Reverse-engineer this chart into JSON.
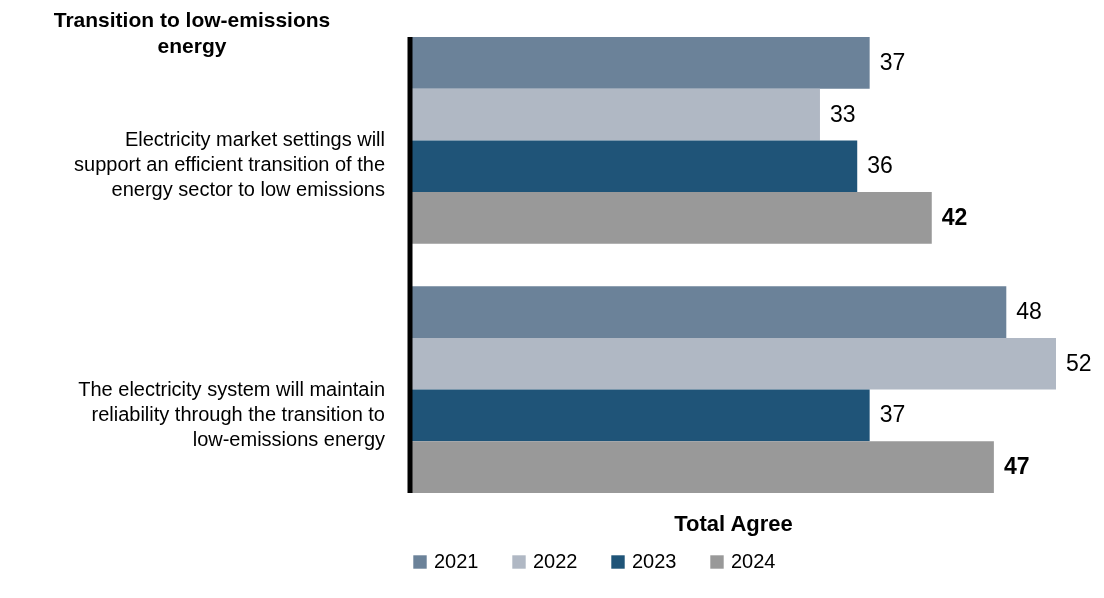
{
  "chart_data": {
    "type": "bar",
    "orientation": "horizontal",
    "title": "Transition to low-emissions energy",
    "xlabel": "Total Agree",
    "categories": [
      "Electricity market settings will support an efficient transition of the energy sector to low emissions",
      "The electricity system will maintain reliability through the transition to low-emissions energy"
    ],
    "series": [
      {
        "name": "2021",
        "color": "#6b8299",
        "values": [
          37,
          48
        ]
      },
      {
        "name": "2022",
        "color": "#b0b8c4",
        "values": [
          33,
          52
        ]
      },
      {
        "name": "2023",
        "color": "#1f5478",
        "values": [
          36,
          37
        ]
      },
      {
        "name": "2024",
        "color": "#999999",
        "values": [
          42,
          47
        ]
      }
    ],
    "data_labels": true,
    "legend": "bottom",
    "grid": false
  }
}
